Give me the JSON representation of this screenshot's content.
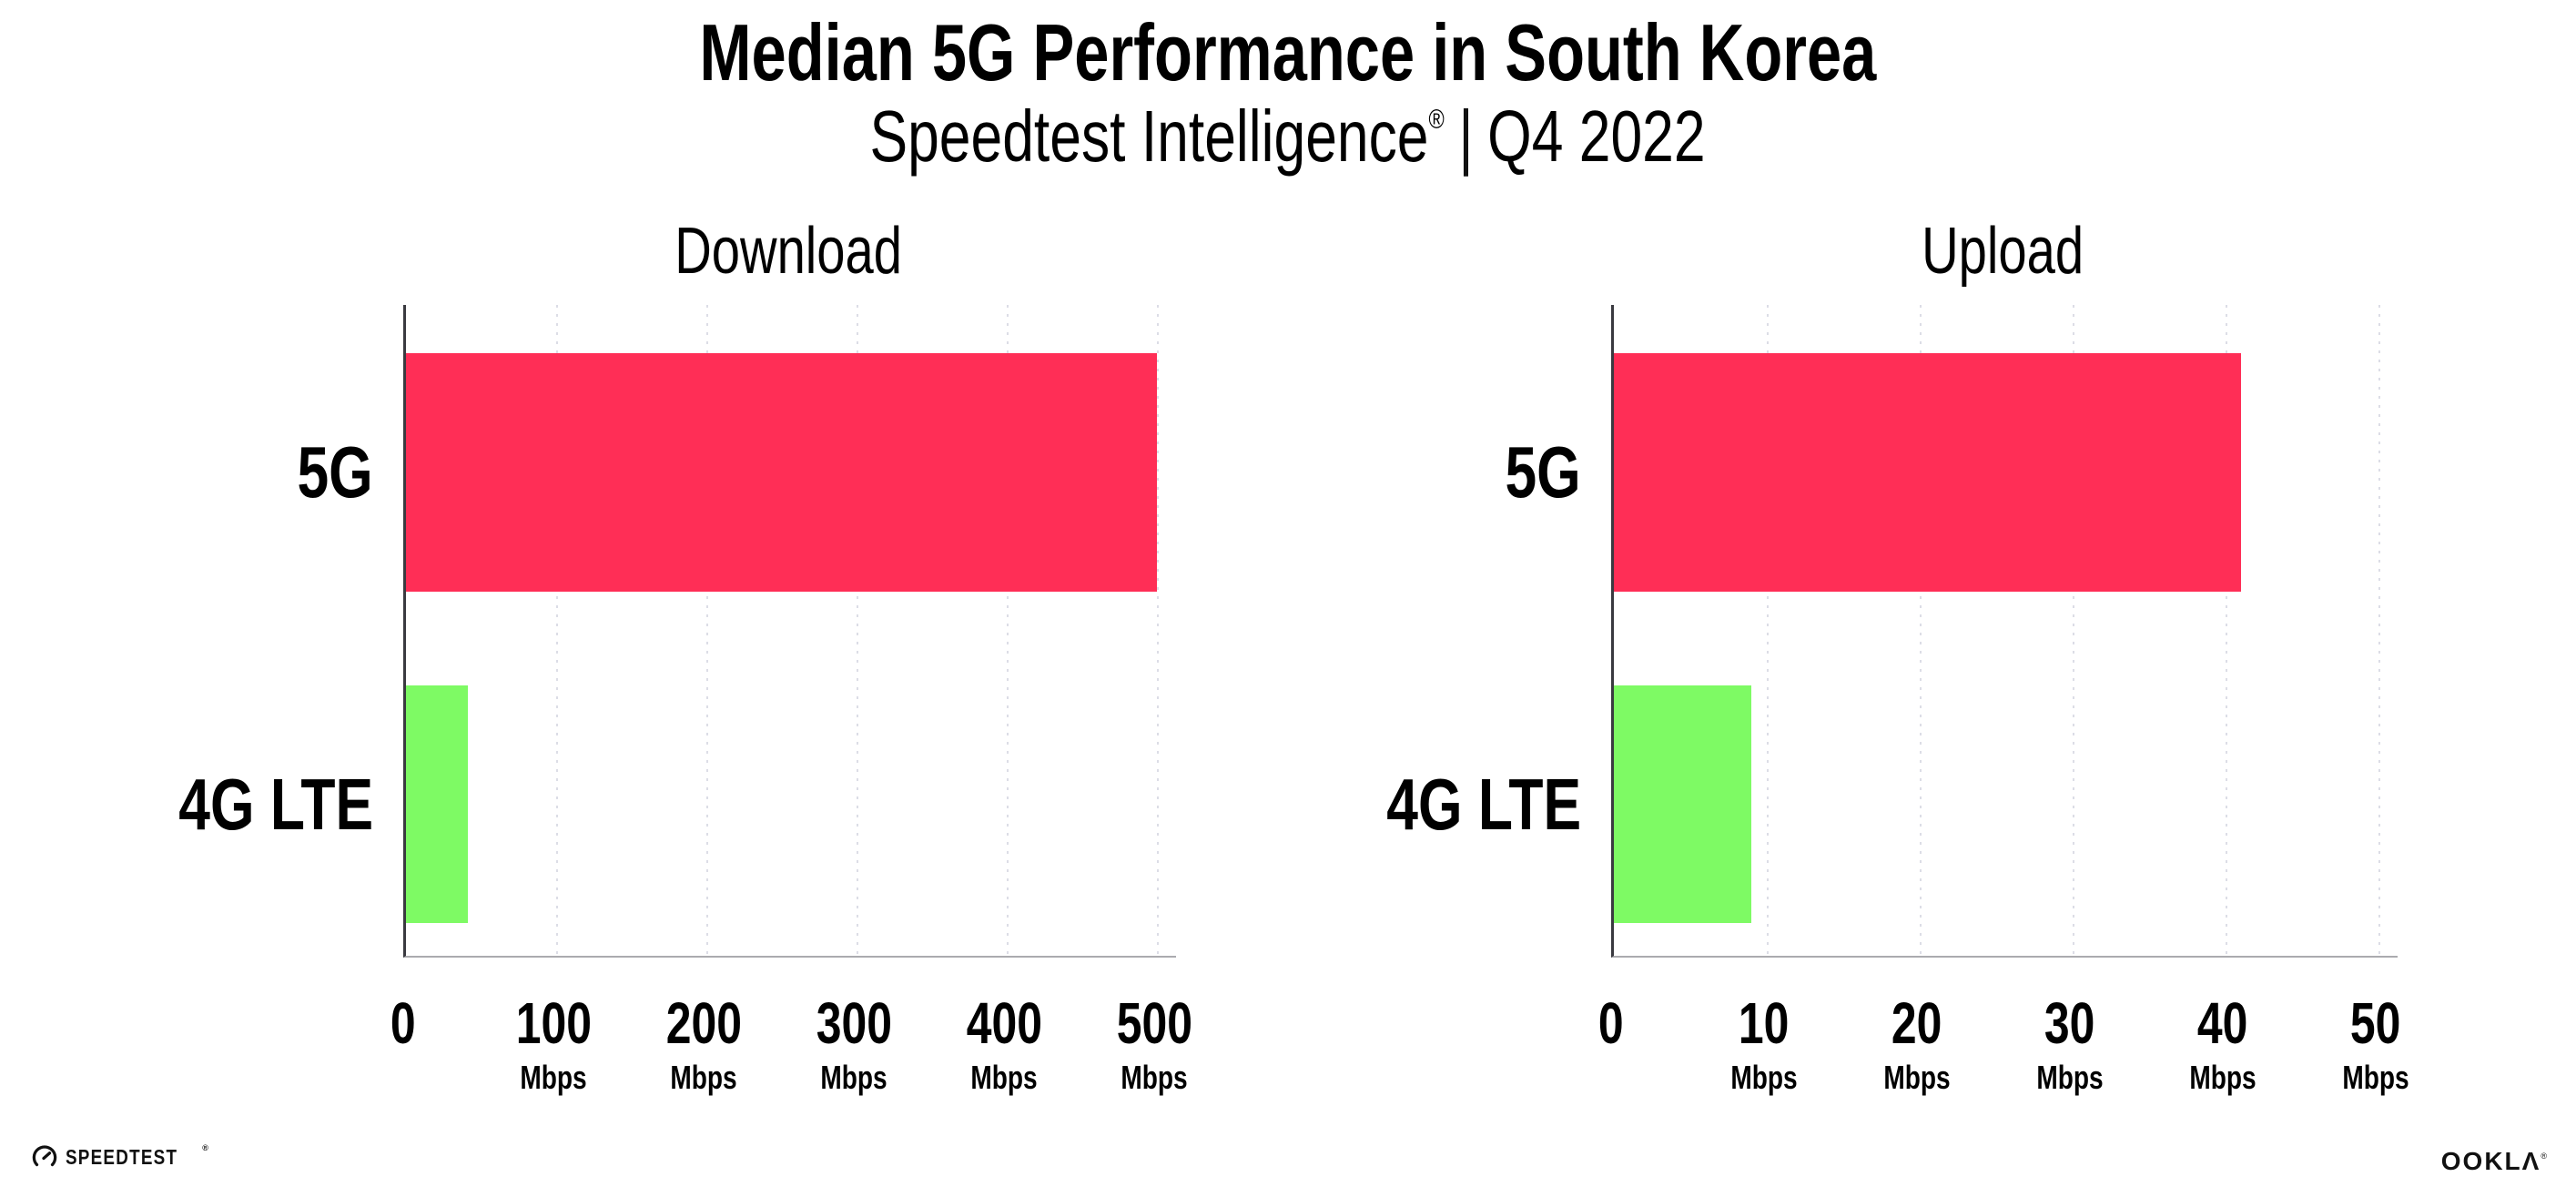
{
  "header": {
    "title": "Median 5G Performance in South Korea",
    "subtitle": {
      "brand": "Speedtest Intelligence",
      "reg_mark": "®",
      "separator": "|",
      "period": "Q4 2022"
    }
  },
  "colors": {
    "background": "#FFFFFF",
    "bar_5g": "#FF2E56",
    "bar_4g_lte": "#7EFA64",
    "grid": "#DCDDE6",
    "axis_y": "#3A3A40",
    "axis_x": "#ABABAF",
    "text": "#000000"
  },
  "chart_data": [
    {
      "type": "bar",
      "orientation": "horizontal",
      "title": "Download",
      "categories": [
        "5G",
        "4G LTE"
      ],
      "values": [
        500,
        41
      ],
      "unit": "Mbps",
      "xlim": [
        0,
        500
      ],
      "xticks": [
        0,
        100,
        200,
        300,
        400,
        500
      ],
      "tick_unit": "Mbps",
      "bar_colors": [
        "#FF2E56",
        "#7EFA64"
      ],
      "grid": "vertical-dotted",
      "legend": "none"
    },
    {
      "type": "bar",
      "orientation": "horizontal",
      "title": "Upload",
      "categories": [
        "5G",
        "4G LTE"
      ],
      "values": [
        41,
        9
      ],
      "unit": "Mbps",
      "xlim": [
        0,
        50
      ],
      "xticks": [
        0,
        10,
        20,
        30,
        40,
        50
      ],
      "tick_unit": "Mbps",
      "bar_colors": [
        "#FF2E56",
        "#7EFA64"
      ],
      "grid": "vertical-dotted",
      "legend": "none"
    }
  ],
  "footer": {
    "speedtest_wordmark": "SPEEDTEST",
    "speedtest_reg_mark": "®",
    "ookla_wordmark_main": "OOKL",
    "ookla_wordmark_a": "Λ",
    "ookla_reg_mark": "®"
  }
}
